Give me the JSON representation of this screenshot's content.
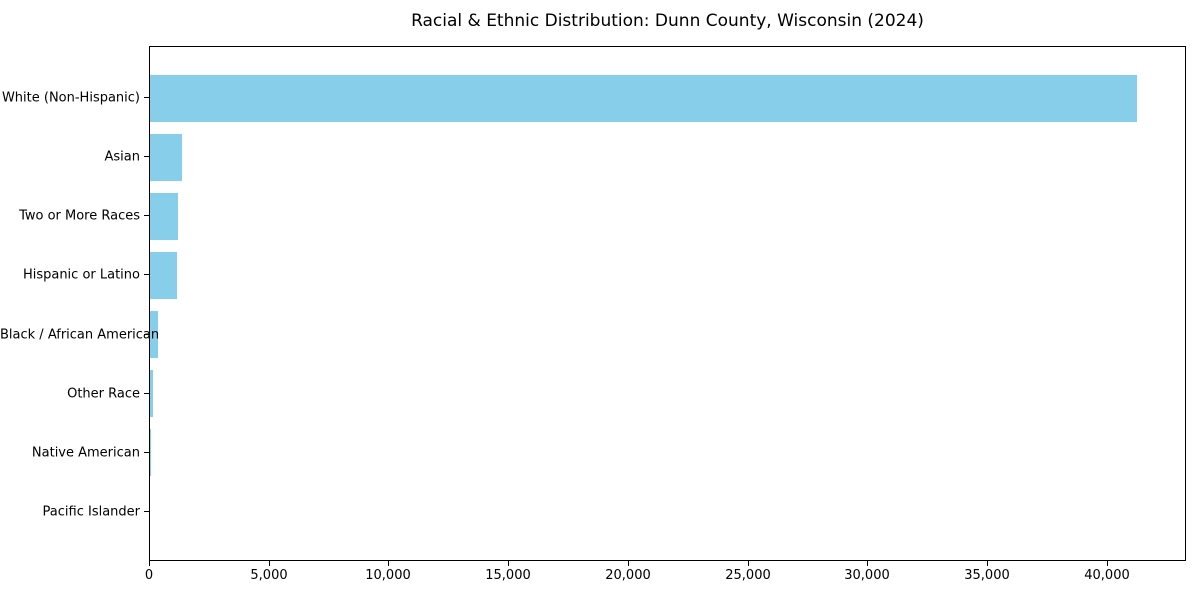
{
  "chart_data": {
    "type": "bar",
    "orientation": "horizontal",
    "title": "Racial & Ethnic Distribution: Dunn County, Wisconsin (2024)",
    "categories": [
      "White (Non-Hispanic)",
      "Asian",
      "Two or More Races",
      "Hispanic or Latino",
      "Black / African American",
      "Other Race",
      "Native American",
      "Pacific Islander"
    ],
    "values": [
      41200,
      1350,
      1180,
      1130,
      320,
      140,
      50,
      15
    ],
    "xlabel": "",
    "ylabel": "",
    "xlim": [
      0,
      43300
    ],
    "xticks": [
      0,
      5000,
      10000,
      15000,
      20000,
      25000,
      30000,
      35000,
      40000
    ],
    "xtick_labels": [
      "0",
      "5,000",
      "10,000",
      "15,000",
      "20,000",
      "25,000",
      "30,000",
      "35,000",
      "40,000"
    ],
    "bar_color": "#87CEEB",
    "axis_color": "#000000",
    "background_color": "#FFFFFF",
    "grid": false,
    "legend": null
  }
}
